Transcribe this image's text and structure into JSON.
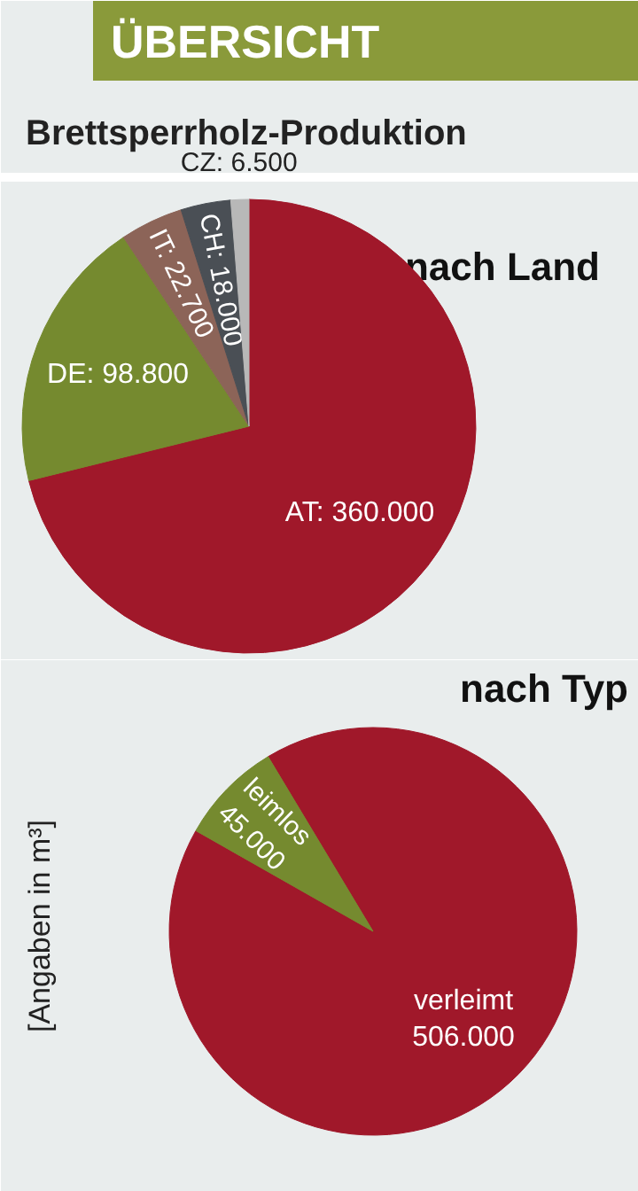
{
  "chart_data": [
    {
      "type": "pie",
      "title": "Brettsperrholz-Produktion",
      "subtitle": "nach Land",
      "annotations": [
        "ÜBERSICHT"
      ],
      "categories": [
        "AT",
        "DE",
        "IT",
        "CH",
        "CZ"
      ],
      "values": [
        360000,
        98800,
        22700,
        18000,
        6500
      ],
      "value_labels": [
        "360.000",
        "98.800",
        "22.700",
        "18.000",
        "6.500"
      ],
      "colors": [
        "#a0182a",
        "#758a2f",
        "#8c6458",
        "#4a4f55",
        "#b8b8b8"
      ]
    },
    {
      "type": "pie",
      "title": "nach Typ",
      "annotations": [
        "[Angaben in m³]"
      ],
      "categories": [
        "verleimt",
        "leimlos"
      ],
      "values": [
        506000,
        45000
      ],
      "value_labels": [
        "506.000",
        "45.000"
      ],
      "colors": [
        "#a0182a",
        "#758a2f"
      ]
    }
  ]
}
